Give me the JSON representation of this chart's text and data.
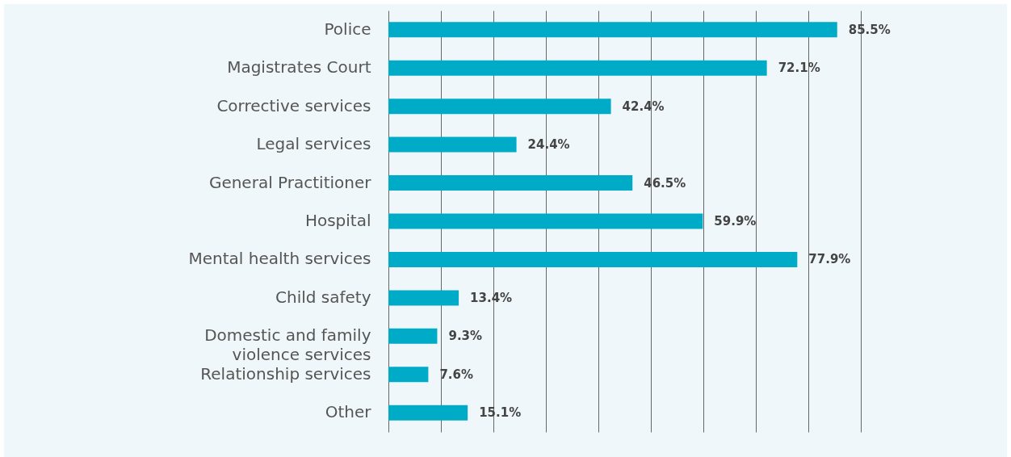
{
  "chart_data": {
    "type": "bar",
    "orientation": "horizontal",
    "categories": [
      "Police",
      "Magistrates Court",
      "Corrective services",
      "Legal services",
      "General Practitioner",
      "Hospital",
      "Mental health services",
      "Child safety",
      "Domestic and family violence services",
      "Relationship services",
      "Other"
    ],
    "values": [
      85.5,
      72.1,
      42.4,
      24.4,
      46.5,
      59.9,
      77.9,
      13.4,
      9.3,
      7.6,
      15.1
    ],
    "value_labels": [
      "85.5%",
      "72.1%",
      "42.4%",
      "24.4%",
      "46.5%",
      "59.9%",
      "77.9%",
      "13.4%",
      "9.3%",
      "7.6%",
      "15.1%"
    ],
    "color": "#00abc8",
    "xlim": [
      0,
      90
    ],
    "xticks": [
      {
        "value": 0,
        "label": null
      },
      {
        "value": 10,
        "label": null
      },
      {
        "value": 20,
        "label": null
      },
      {
        "value": 30,
        "label": null
      },
      {
        "value": 40,
        "label": null
      },
      {
        "value": 50,
        "label": null
      },
      {
        "value": 60,
        "label": null
      },
      {
        "value": 70,
        "label": null
      },
      {
        "value": 80,
        "label": null
      },
      {
        "value": 90,
        "label": null
      }
    ],
    "grid": "x",
    "tick_labels": "y"
  }
}
